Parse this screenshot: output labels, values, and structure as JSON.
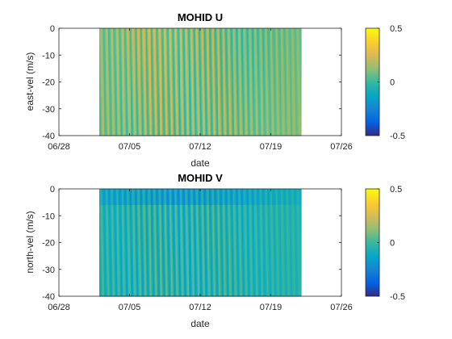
{
  "chart_data": [
    {
      "type": "heatmap",
      "title": "MOHID U",
      "xlabel": "date",
      "ylabel": "east-vel (m/s)",
      "x_ticks": [
        "06/28",
        "07/05",
        "07/12",
        "07/19",
        "07/26"
      ],
      "x_range": [
        "2023-06-28",
        "2023-07-26"
      ],
      "data_x_range": [
        "2023-07-02",
        "2023-07-22"
      ],
      "y_ticks": [
        0,
        -10,
        -20,
        -30,
        -40
      ],
      "ylim": [
        -40,
        0
      ],
      "colorbar": {
        "ticks": [
          0.5,
          0,
          -0.5
        ],
        "clim": [
          -0.5,
          0.5
        ],
        "colormap": "parula"
      },
      "value_description": "east velocity",
      "mean_value": 0.1,
      "amplitude": 0.15
    },
    {
      "type": "heatmap",
      "title": "MOHID V",
      "xlabel": "date",
      "ylabel": "north-vel (m/s)",
      "x_ticks": [
        "06/28",
        "07/05",
        "07/12",
        "07/19",
        "07/26"
      ],
      "x_range": [
        "2023-06-28",
        "2023-07-26"
      ],
      "data_x_range": [
        "2023-07-02",
        "2023-07-22"
      ],
      "y_ticks": [
        0,
        -10,
        -20,
        -30,
        -40
      ],
      "ylim": [
        -40,
        0
      ],
      "colorbar": {
        "ticks": [
          0.5,
          0,
          -0.5
        ],
        "clim": [
          -0.5,
          0.5
        ],
        "colormap": "parula"
      },
      "value_description": "north velocity",
      "mean_value": -0.05,
      "amplitude": 0.12
    }
  ]
}
